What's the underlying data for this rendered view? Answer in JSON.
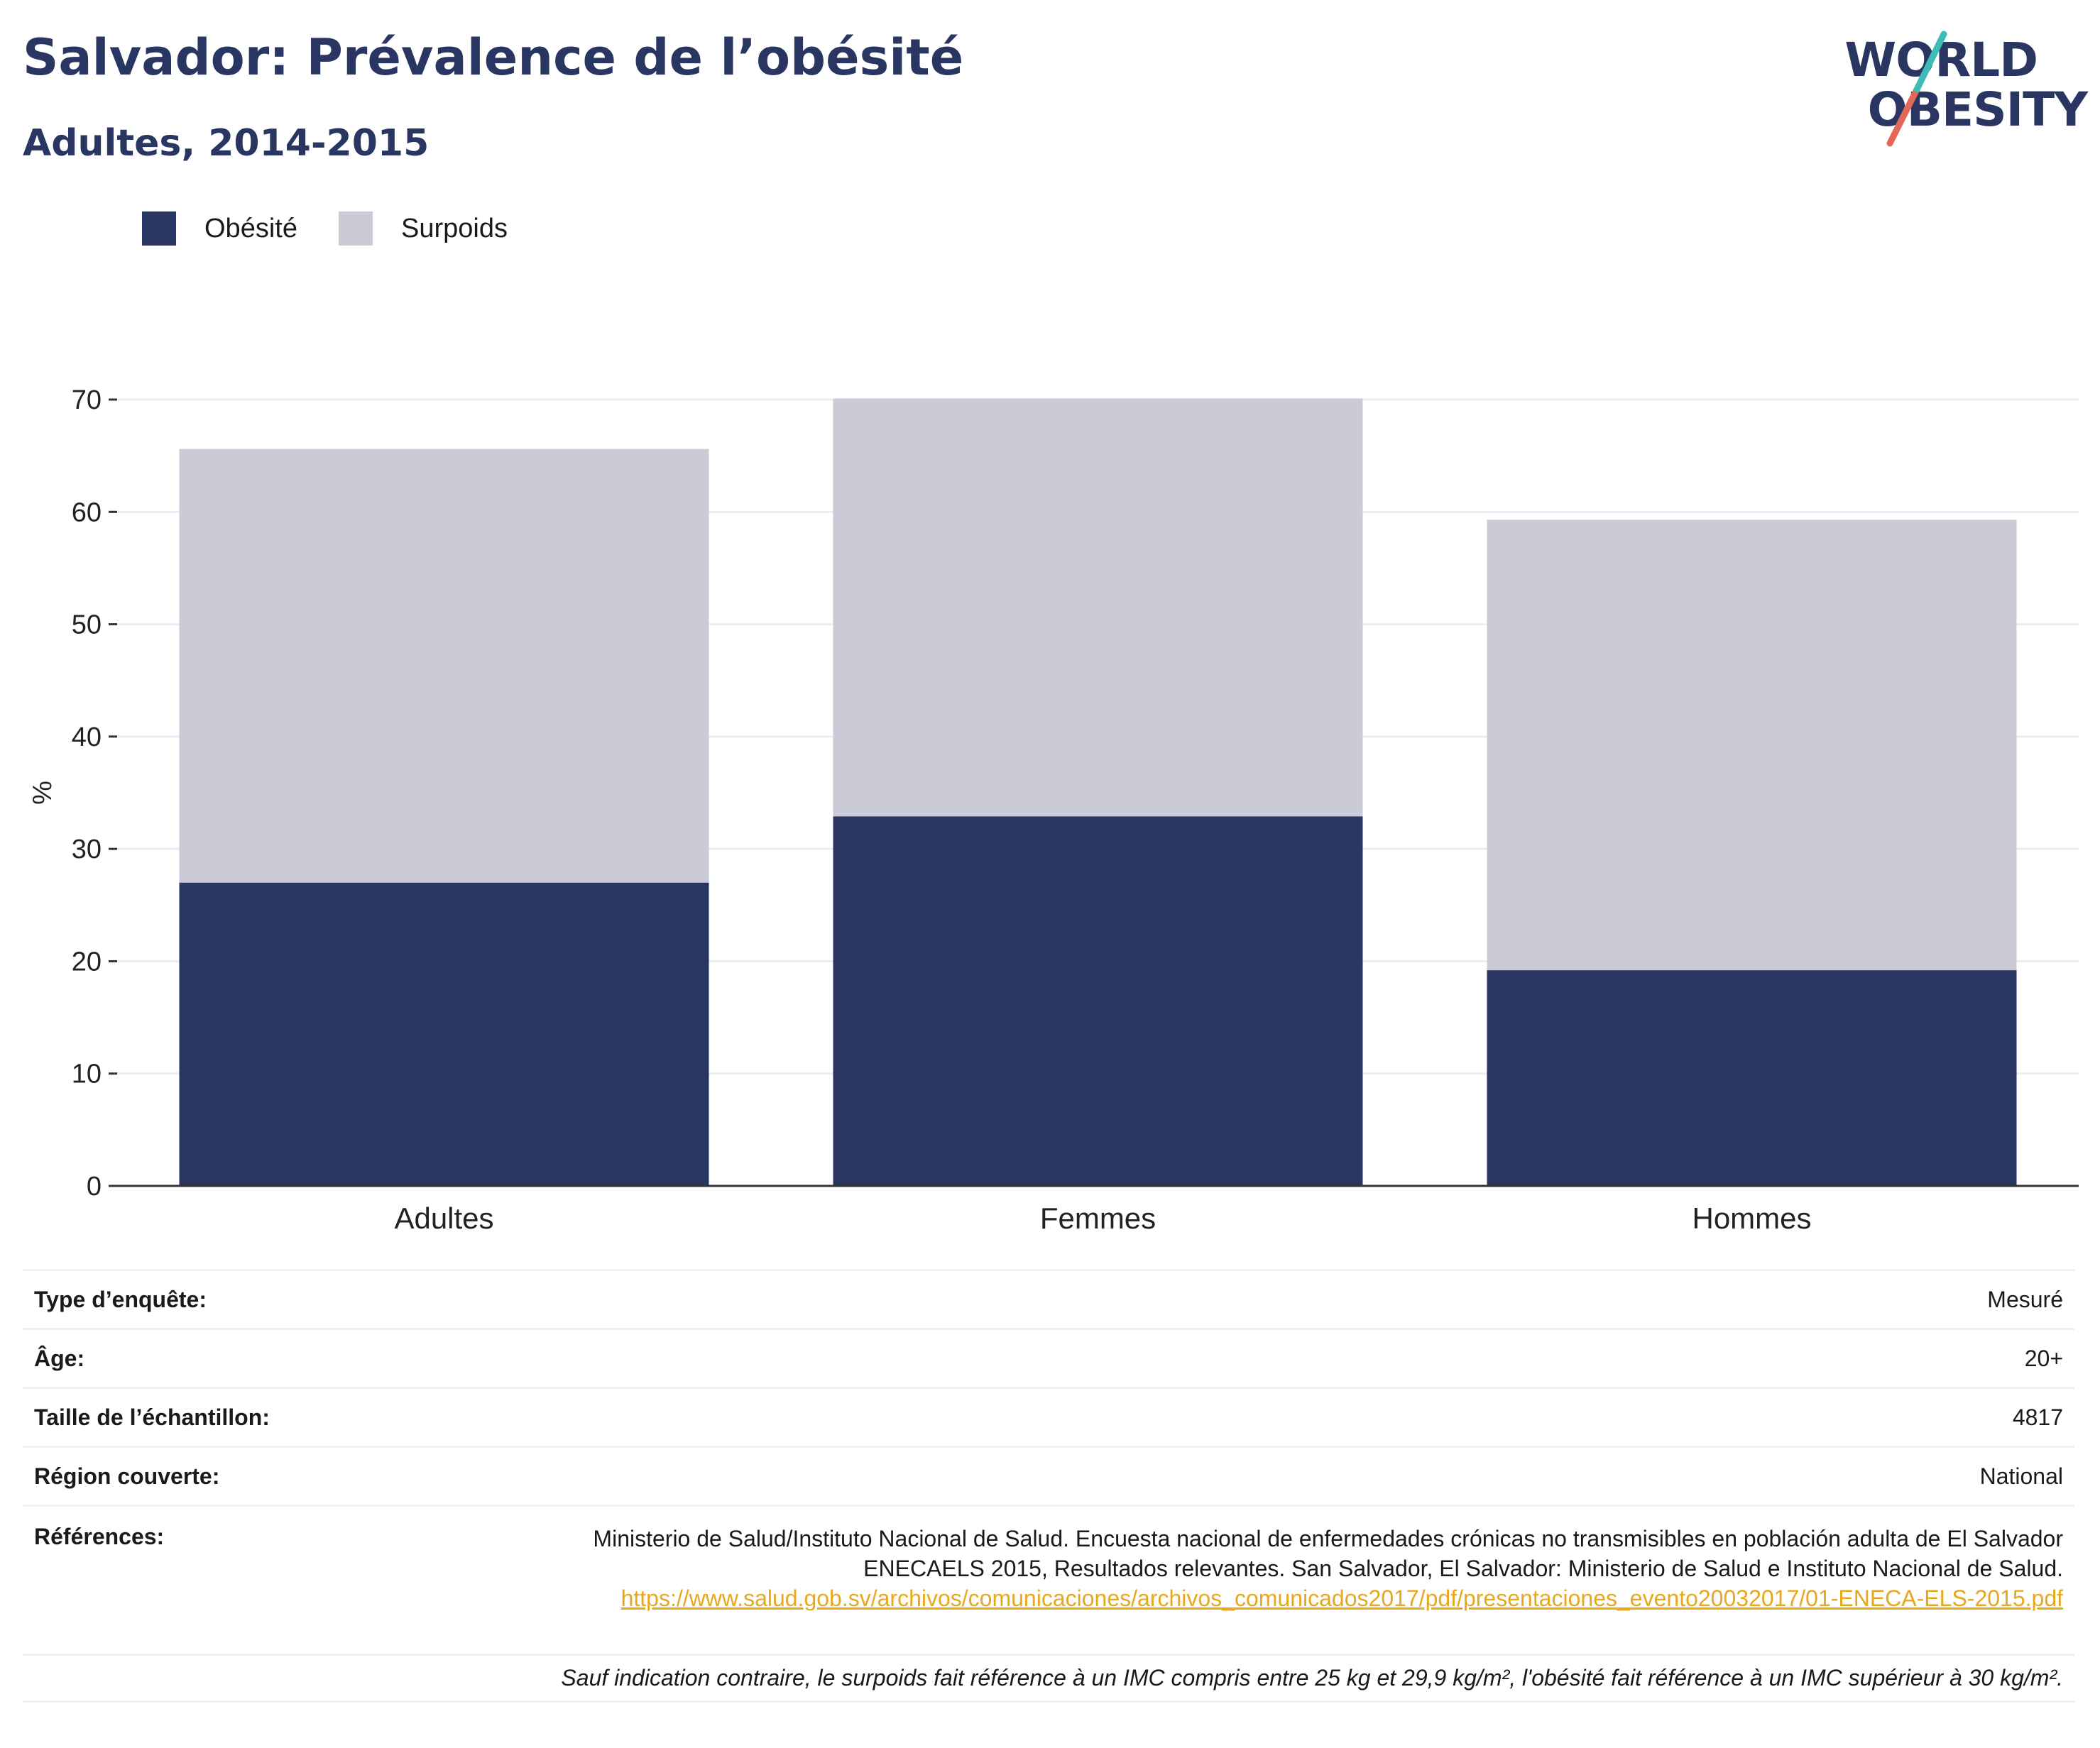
{
  "header": {
    "title": "Salvador: Prévalence de l’obésité",
    "subtitle": "Adultes, 2014-2015"
  },
  "logo": {
    "line1": "WORLD",
    "line2": "OBESITY"
  },
  "legend": {
    "obesity_label": "Obésité",
    "overweight_label": "Surpoids"
  },
  "colors": {
    "obesity": "#2a3662",
    "overweight": "#cacbd6",
    "accent_teal": "#3dbdb5",
    "accent_coral": "#e4685a",
    "link": "#e8a81e"
  },
  "chart_data": {
    "type": "bar",
    "stacked": true,
    "categories": [
      "Adultes",
      "Femmes",
      "Hommes"
    ],
    "series": [
      {
        "name": "Obésité",
        "values": [
          27.0,
          32.9,
          19.2
        ]
      },
      {
        "name": "Surpoids",
        "values": [
          38.6,
          37.2,
          40.1
        ]
      }
    ],
    "ylabel": "%",
    "ylim": [
      0,
      70
    ],
    "yticks": [
      0,
      10,
      20,
      30,
      40,
      50,
      60,
      70
    ],
    "grid": true,
    "legend_position": "top-left"
  },
  "info": {
    "survey_type_label": "Type d’enquête:",
    "survey_type_value": "Mesuré",
    "age_label": "Âge:",
    "age_value": "20+",
    "sample_label": "Taille de l’échantillon:",
    "sample_value": "4817",
    "region_label": "Région couverte:",
    "region_value": "National",
    "references_label": "Références:",
    "references_text": "Ministerio de Salud/Instituto Nacional de Salud. Encuesta nacional de enfermedades crónicas no transmisibles en población adulta de El Salvador ENECAELS 2015, Resultados relevantes. San Salvador, El Salvador: Ministerio de Salud e Instituto Nacional de Salud.",
    "references_link": "https://www.salud.gob.sv/archivos/comunicaciones/archivos_comunicados2017/pdf/presentaciones_evento20032017/01-ENECA-ELS-2015.pdf"
  },
  "footnote": "Sauf indication contraire, le surpoids fait référence à un IMC compris entre 25 kg et 29,9 kg/m², l'obésité fait référence à un IMC supérieur à 30 kg/m²."
}
